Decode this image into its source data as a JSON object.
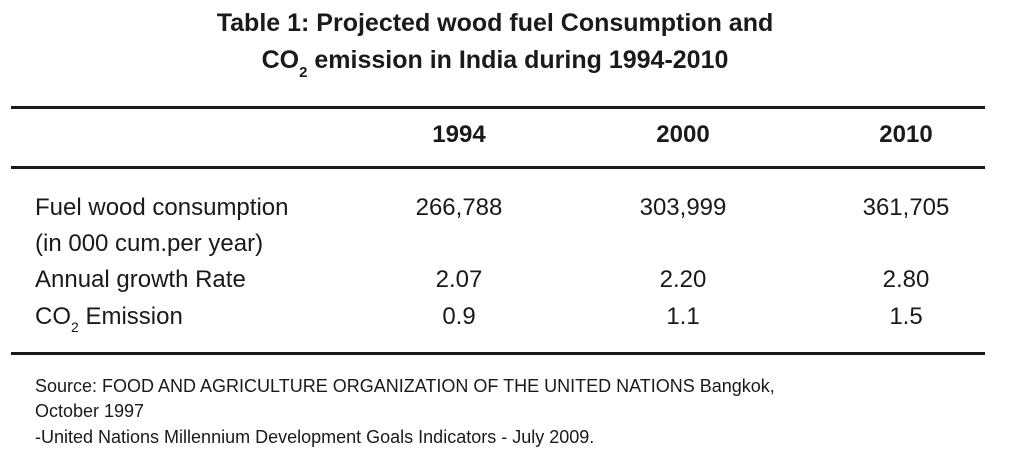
{
  "title": {
    "line1": "Table 1: Projected wood fuel Consumption and",
    "line2_pre": "CO",
    "line2_sub": "2",
    "line2_post": " emission in India during 1994-2010"
  },
  "table": {
    "columns": [
      "1994",
      "2000",
      "2010"
    ],
    "rows": [
      {
        "label_line1": "Fuel wood consumption",
        "label_line2": "(in 000 cum.per year)",
        "values": [
          "266,788",
          "303,999",
          "361,705"
        ]
      },
      {
        "label": "Annual growth Rate",
        "values": [
          "2.07",
          "2.20",
          "2.80"
        ]
      },
      {
        "label_pre": "CO",
        "label_sub": "2",
        "label_post": " Emission",
        "values": [
          "0.9",
          "1.1",
          "1.5"
        ]
      }
    ]
  },
  "source": {
    "line1": "Source: FOOD AND AGRICULTURE ORGANIZATION OF THE UNITED NATIONS Bangkok,",
    "line2": "October 1997",
    "line3": "-United Nations Millennium Development Goals Indicators - July 2009."
  }
}
